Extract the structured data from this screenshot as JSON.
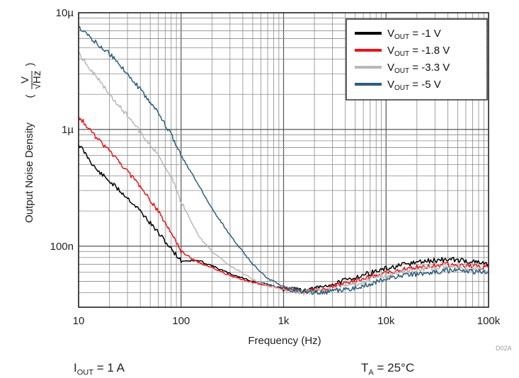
{
  "chart_data": {
    "type": "line",
    "xlabel": "Frequency (Hz)",
    "ylabel": "Output Noise Density",
    "ylabel_unit": {
      "num": "V",
      "den": "√Hz"
    },
    "xscale": "log",
    "yscale": "log",
    "xlim": [
      10,
      100000
    ],
    "ylim": [
      3e-08,
      1e-05
    ],
    "grid": true,
    "legend_position": "top-right",
    "x_ticks": [
      {
        "value": 10,
        "label": "10"
      },
      {
        "value": 100,
        "label": "100"
      },
      {
        "value": 1000,
        "label": "1k"
      },
      {
        "value": 10000,
        "label": "10k"
      },
      {
        "value": 100000,
        "label": "100k"
      }
    ],
    "y_ticks": [
      {
        "value": 1e-05,
        "label": "10µ"
      },
      {
        "value": 1e-06,
        "label": "1µ"
      },
      {
        "value": 1e-07,
        "label": "100n"
      }
    ],
    "series": [
      {
        "name": "VOUT = -1 V",
        "legend": {
          "pre": "V",
          "sub": "OUT",
          "post": " = -1 V"
        },
        "color": "#000000",
        "x": [
          10,
          15,
          20,
          30,
          40,
          60,
          80,
          100,
          150,
          200,
          300,
          500,
          700,
          1000,
          1500,
          2000,
          3000,
          5000,
          7000,
          10000,
          20000,
          40000,
          60000,
          100000
        ],
        "y": [
          7.5e-07,
          4.5e-07,
          3.6e-07,
          2.6e-07,
          2e-07,
          1.3e-07,
          9.5e-08,
          7.5e-08,
          7.5e-08,
          6.8e-08,
          5.8e-08,
          5e-08,
          4.7e-08,
          4.3e-08,
          4.2e-08,
          4.3e-08,
          4.7e-08,
          5.4e-08,
          5.9e-08,
          6.4e-08,
          7.3e-08,
          7.7e-08,
          7.5e-08,
          7e-08
        ]
      },
      {
        "name": "VOUT = -1.8 V",
        "legend": {
          "pre": "V",
          "sub": "OUT",
          "post": " = -1.8 V"
        },
        "color": "#e8141b",
        "x": [
          10,
          15,
          20,
          30,
          40,
          60,
          80,
          100,
          150,
          200,
          300,
          500,
          700,
          1000,
          1500,
          2000,
          3000,
          5000,
          7000,
          10000,
          20000,
          40000,
          60000,
          100000
        ],
        "y": [
          1.3e-06,
          8.5e-07,
          6.5e-07,
          4.4e-07,
          3.2e-07,
          2e-07,
          1.3e-07,
          9e-08,
          7.2e-08,
          6.6e-08,
          5.6e-08,
          4.9e-08,
          4.6e-08,
          4.3e-08,
          4.1e-08,
          4.2e-08,
          4.5e-08,
          5e-08,
          5.5e-08,
          5.9e-08,
          6.6e-08,
          7e-08,
          6.8e-08,
          6.6e-08
        ]
      },
      {
        "name": "VOUT = -3.3 V",
        "legend": {
          "pre": "V",
          "sub": "OUT",
          "post": " = -3.3 V"
        },
        "color": "#b8b8b8",
        "x": [
          10,
          15,
          20,
          30,
          40,
          60,
          80,
          100,
          150,
          200,
          300,
          500,
          700,
          1000,
          1500,
          2000,
          3000,
          5000,
          7000,
          10000,
          20000,
          40000,
          60000,
          100000
        ],
        "y": [
          4.5e-06,
          2.8e-06,
          2e-06,
          1.3e-06,
          9.5e-07,
          6e-07,
          4e-07,
          2.4e-07,
          1.2e-07,
          9e-08,
          6.8e-08,
          5.2e-08,
          4.6e-08,
          4.2e-08,
          4e-08,
          4.1e-08,
          4.3e-08,
          4.7e-08,
          5.2e-08,
          5.6e-08,
          6.3e-08,
          6.6e-08,
          6.4e-08,
          6.3e-08
        ]
      },
      {
        "name": "VOUT = -5 V",
        "legend": {
          "pre": "V",
          "sub": "OUT",
          "post": " = -5 V"
        },
        "color": "#2d5f7a",
        "x": [
          10,
          15,
          20,
          30,
          40,
          60,
          80,
          100,
          150,
          200,
          300,
          500,
          700,
          1000,
          1500,
          2000,
          3000,
          5000,
          7000,
          10000,
          20000,
          40000,
          60000,
          100000
        ],
        "y": [
          7.5e-06,
          5.5e-06,
          4.5e-06,
          3e-06,
          2.2e-06,
          1.4e-06,
          9e-07,
          6e-07,
          3.3e-07,
          2.1e-07,
          1.25e-07,
          7e-08,
          5.3e-08,
          4.5e-08,
          4.1e-08,
          4e-08,
          4.1e-08,
          4.4e-08,
          4.8e-08,
          5.2e-08,
          5.8e-08,
          6.2e-08,
          6.1e-08,
          6e-08
        ]
      }
    ]
  },
  "conditions": {
    "left": {
      "pre": "I",
      "sub": "OUT",
      "post": " = 1 A"
    },
    "right": {
      "pre": "T",
      "sub": "A",
      "post": " = 25°C"
    }
  },
  "watermark": "D02A"
}
